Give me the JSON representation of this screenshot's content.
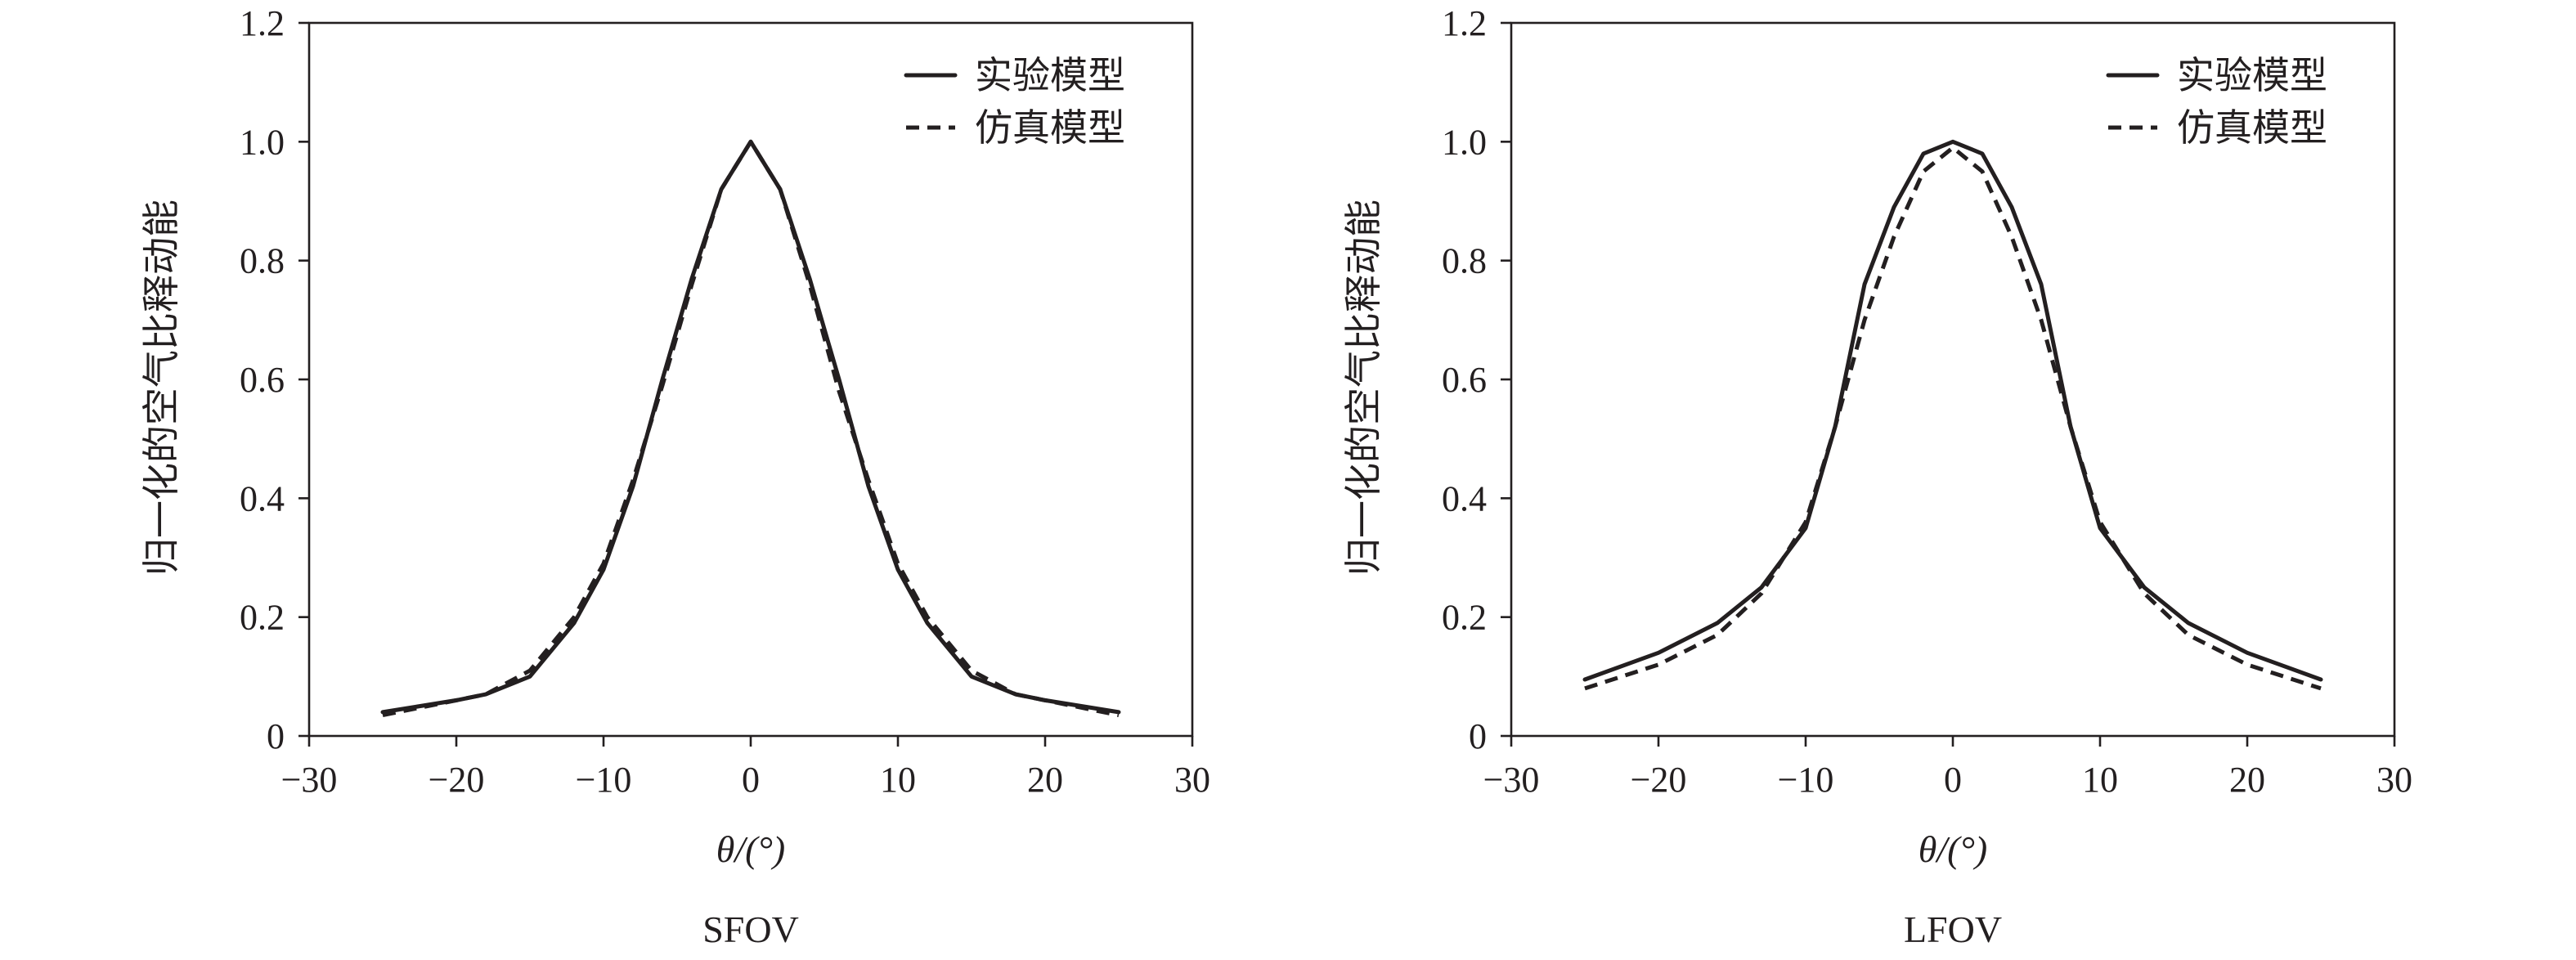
{
  "chart_data": [
    {
      "type": "line",
      "title": "SFOV",
      "xlabel": "θ/(°)",
      "ylabel": "归一化的空气比释动能",
      "xlim": [
        -30,
        30
      ],
      "ylim": [
        0,
        1.2
      ],
      "xticks": [
        "−30",
        "−20",
        "−10",
        "0",
        "10",
        "20",
        "30"
      ],
      "yticks": [
        "0",
        "0.2",
        "0.4",
        "0.6",
        "0.8",
        "1.0",
        "1.2"
      ],
      "grid": false,
      "legend_position": "top-right",
      "series": [
        {
          "name": "实验模型",
          "style": "solid",
          "x": [
            -25,
            -20,
            -18,
            -15,
            -12,
            -10,
            -8,
            -6,
            -4,
            -2,
            0,
            2,
            4,
            6,
            8,
            10,
            12,
            15,
            18,
            20,
            25
          ],
          "y": [
            0.04,
            0.06,
            0.07,
            0.1,
            0.19,
            0.28,
            0.42,
            0.6,
            0.77,
            0.92,
            1.0,
            0.92,
            0.77,
            0.6,
            0.42,
            0.28,
            0.19,
            0.1,
            0.07,
            0.06,
            0.04
          ]
        },
        {
          "name": "仿真模型",
          "style": "dashed",
          "x": [
            -25,
            -20,
            -18,
            -15,
            -12,
            -10,
            -8,
            -6,
            -4,
            -2,
            0,
            2,
            4,
            6,
            8,
            10,
            12,
            15,
            18,
            20,
            25
          ],
          "y": [
            0.035,
            0.06,
            0.07,
            0.11,
            0.2,
            0.29,
            0.43,
            0.59,
            0.76,
            0.92,
            1.0,
            0.92,
            0.76,
            0.58,
            0.43,
            0.29,
            0.2,
            0.11,
            0.07,
            0.06,
            0.035
          ]
        }
      ]
    },
    {
      "type": "line",
      "title": "LFOV",
      "xlabel": "θ/(°)",
      "ylabel": "归一化的空气比释动能",
      "xlim": [
        -30,
        30
      ],
      "ylim": [
        0,
        1.2
      ],
      "xticks": [
        "−30",
        "−20",
        "−10",
        "0",
        "10",
        "20",
        "30"
      ],
      "yticks": [
        "0",
        "0.2",
        "0.4",
        "0.6",
        "0.8",
        "1.0",
        "1.2"
      ],
      "grid": false,
      "legend_position": "top-right",
      "series": [
        {
          "name": "实验模型",
          "style": "solid",
          "x": [
            -25,
            -20,
            -16,
            -13,
            -10,
            -8,
            -6,
            -4,
            -2,
            0,
            2,
            4,
            6,
            8,
            10,
            13,
            16,
            20,
            25
          ],
          "y": [
            0.095,
            0.14,
            0.19,
            0.25,
            0.35,
            0.52,
            0.76,
            0.89,
            0.98,
            1.0,
            0.98,
            0.89,
            0.76,
            0.52,
            0.35,
            0.25,
            0.19,
            0.14,
            0.095
          ]
        },
        {
          "name": "仿真模型",
          "style": "dashed",
          "x": [
            -25,
            -20,
            -16,
            -13,
            -10,
            -8,
            -6,
            -4,
            -2,
            0,
            2,
            4,
            6,
            8,
            10,
            13,
            16,
            20,
            25
          ],
          "y": [
            0.08,
            0.12,
            0.17,
            0.24,
            0.36,
            0.52,
            0.7,
            0.84,
            0.95,
            0.99,
            0.95,
            0.84,
            0.7,
            0.52,
            0.36,
            0.24,
            0.17,
            0.12,
            0.08
          ]
        }
      ]
    }
  ]
}
